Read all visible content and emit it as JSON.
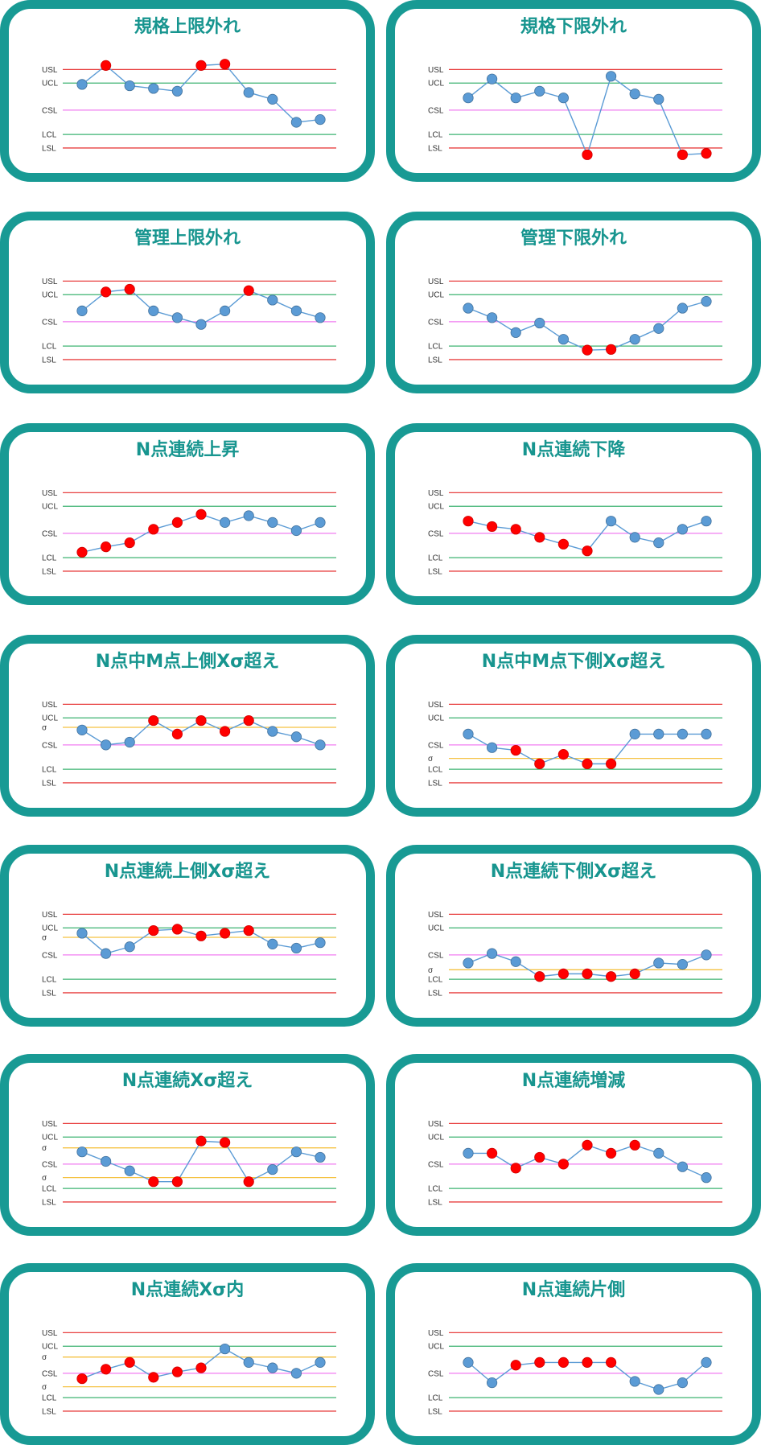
{
  "colors": {
    "frame": "#189a94",
    "title": "#17958f",
    "spec_line": "#e84040",
    "control_line": "#3cb371",
    "center_line": "#f07cf0",
    "sigma_line": "#f5c242",
    "point_normal": "#5b9bd5",
    "point_alarm": "#ff0000",
    "series_line": "#5b9bd5"
  },
  "chart_data": [
    {
      "title": "規格上限外れ",
      "type": "line",
      "lines": [
        {
          "label": "USL",
          "y": 5,
          "kind": "spec"
        },
        {
          "label": "UCL",
          "y": 4,
          "kind": "control"
        },
        {
          "label": "CSL",
          "y": 2,
          "kind": "center"
        },
        {
          "label": "LCL",
          "y": 0.2,
          "kind": "control"
        },
        {
          "label": "LSL",
          "y": -0.8,
          "kind": "spec"
        }
      ],
      "values": [
        3.9,
        5.3,
        3.8,
        3.6,
        3.4,
        5.3,
        5.4,
        3.3,
        2.8,
        1.1,
        1.3
      ],
      "alarm": [
        false,
        true,
        false,
        false,
        false,
        true,
        true,
        false,
        false,
        false,
        false
      ]
    },
    {
      "title": "規格下限外れ",
      "type": "line",
      "lines": [
        {
          "label": "USL",
          "y": 5,
          "kind": "spec"
        },
        {
          "label": "UCL",
          "y": 4,
          "kind": "control"
        },
        {
          "label": "CSL",
          "y": 2,
          "kind": "center"
        },
        {
          "label": "LCL",
          "y": 0.2,
          "kind": "control"
        },
        {
          "label": "LSL",
          "y": -0.8,
          "kind": "spec"
        }
      ],
      "values": [
        2.9,
        4.3,
        2.9,
        3.4,
        2.9,
        -1.3,
        4.5,
        3.2,
        2.8,
        -1.3,
        -1.2
      ],
      "alarm": [
        false,
        false,
        false,
        false,
        false,
        true,
        false,
        false,
        false,
        true,
        true
      ]
    },
    {
      "title": "管理上限外れ",
      "type": "line",
      "lines": [
        {
          "label": "USL",
          "y": 5,
          "kind": "spec"
        },
        {
          "label": "UCL",
          "y": 4,
          "kind": "control"
        },
        {
          "label": "CSL",
          "y": 2,
          "kind": "center"
        },
        {
          "label": "LCL",
          "y": 0.2,
          "kind": "control"
        },
        {
          "label": "LSL",
          "y": -0.8,
          "kind": "spec"
        }
      ],
      "values": [
        2.8,
        4.2,
        4.4,
        2.8,
        2.3,
        1.8,
        2.8,
        4.3,
        3.6,
        2.8,
        2.3
      ],
      "alarm": [
        false,
        true,
        true,
        false,
        false,
        false,
        false,
        true,
        false,
        false,
        false
      ]
    },
    {
      "title": "管理下限外れ",
      "type": "line",
      "lines": [
        {
          "label": "USL",
          "y": 5,
          "kind": "spec"
        },
        {
          "label": "UCL",
          "y": 4,
          "kind": "control"
        },
        {
          "label": "CSL",
          "y": 2,
          "kind": "center"
        },
        {
          "label": "LCL",
          "y": 0.2,
          "kind": "control"
        },
        {
          "label": "LSL",
          "y": -0.8,
          "kind": "spec"
        }
      ],
      "values": [
        3.0,
        2.3,
        1.2,
        1.9,
        0.7,
        -0.1,
        -0.05,
        0.7,
        1.5,
        3.0,
        3.5
      ],
      "alarm": [
        false,
        false,
        false,
        false,
        false,
        true,
        true,
        false,
        false,
        false,
        false
      ]
    },
    {
      "title": "N点連続上昇",
      "type": "line",
      "lines": [
        {
          "label": "USL",
          "y": 5,
          "kind": "spec"
        },
        {
          "label": "UCL",
          "y": 4,
          "kind": "control"
        },
        {
          "label": "CSL",
          "y": 2,
          "kind": "center"
        },
        {
          "label": "LCL",
          "y": 0.2,
          "kind": "control"
        },
        {
          "label": "LSL",
          "y": -0.8,
          "kind": "spec"
        }
      ],
      "values": [
        0.6,
        1.0,
        1.3,
        2.3,
        2.8,
        3.4,
        2.8,
        3.3,
        2.8,
        2.2,
        2.8
      ],
      "alarm": [
        true,
        true,
        true,
        true,
        true,
        true,
        false,
        false,
        false,
        false,
        false
      ]
    },
    {
      "title": "N点連続下降",
      "type": "line",
      "lines": [
        {
          "label": "USL",
          "y": 5,
          "kind": "spec"
        },
        {
          "label": "UCL",
          "y": 4,
          "kind": "control"
        },
        {
          "label": "CSL",
          "y": 2,
          "kind": "center"
        },
        {
          "label": "LCL",
          "y": 0.2,
          "kind": "control"
        },
        {
          "label": "LSL",
          "y": -0.8,
          "kind": "spec"
        }
      ],
      "values": [
        2.9,
        2.5,
        2.3,
        1.7,
        1.2,
        0.7,
        2.9,
        1.7,
        1.3,
        2.3,
        2.9
      ],
      "alarm": [
        true,
        true,
        true,
        true,
        true,
        true,
        false,
        false,
        false,
        false,
        false
      ]
    },
    {
      "title": "N点中M点上側Xσ超え",
      "type": "line",
      "lines": [
        {
          "label": "USL",
          "y": 5,
          "kind": "spec"
        },
        {
          "label": "UCL",
          "y": 4,
          "kind": "control"
        },
        {
          "label": "σ",
          "y": 3.3,
          "kind": "sigma"
        },
        {
          "label": "CSL",
          "y": 2,
          "kind": "center"
        },
        {
          "label": "LCL",
          "y": 0.2,
          "kind": "control"
        },
        {
          "label": "LSL",
          "y": -0.8,
          "kind": "spec"
        }
      ],
      "values": [
        3.1,
        2.0,
        2.2,
        3.8,
        2.8,
        3.8,
        3.0,
        3.8,
        3.0,
        2.6,
        2.0
      ],
      "alarm": [
        false,
        false,
        false,
        true,
        true,
        true,
        true,
        true,
        false,
        false,
        false
      ]
    },
    {
      "title": "N点中M点下側Xσ超え",
      "type": "line",
      "lines": [
        {
          "label": "USL",
          "y": 5,
          "kind": "spec"
        },
        {
          "label": "UCL",
          "y": 4,
          "kind": "control"
        },
        {
          "label": "CSL",
          "y": 2,
          "kind": "center"
        },
        {
          "label": "σ",
          "y": 1.0,
          "kind": "sigma"
        },
        {
          "label": "LCL",
          "y": 0.2,
          "kind": "control"
        },
        {
          "label": "LSL",
          "y": -0.8,
          "kind": "spec"
        }
      ],
      "values": [
        2.8,
        1.8,
        1.6,
        0.6,
        1.3,
        0.6,
        0.6,
        2.8,
        2.8,
        2.8,
        2.8
      ],
      "alarm": [
        false,
        false,
        true,
        true,
        true,
        true,
        true,
        false,
        false,
        false,
        false
      ]
    },
    {
      "title": "N点連続上側Xσ超え",
      "type": "line",
      "lines": [
        {
          "label": "USL",
          "y": 5,
          "kind": "spec"
        },
        {
          "label": "UCL",
          "y": 4,
          "kind": "control"
        },
        {
          "label": "σ",
          "y": 3.3,
          "kind": "sigma"
        },
        {
          "label": "CSL",
          "y": 2,
          "kind": "center"
        },
        {
          "label": "LCL",
          "y": 0.2,
          "kind": "control"
        },
        {
          "label": "LSL",
          "y": -0.8,
          "kind": "spec"
        }
      ],
      "values": [
        3.6,
        2.1,
        2.6,
        3.8,
        3.9,
        3.4,
        3.6,
        3.8,
        2.8,
        2.5,
        2.9
      ],
      "alarm": [
        false,
        false,
        false,
        true,
        true,
        true,
        true,
        true,
        false,
        false,
        false
      ]
    },
    {
      "title": "N点連続下側Xσ超え",
      "type": "line",
      "lines": [
        {
          "label": "USL",
          "y": 5,
          "kind": "spec"
        },
        {
          "label": "UCL",
          "y": 4,
          "kind": "control"
        },
        {
          "label": "CSL",
          "y": 2,
          "kind": "center"
        },
        {
          "label": "σ",
          "y": 0.9,
          "kind": "sigma"
        },
        {
          "label": "LCL",
          "y": 0.2,
          "kind": "control"
        },
        {
          "label": "LSL",
          "y": -0.8,
          "kind": "spec"
        }
      ],
      "values": [
        1.4,
        2.1,
        1.5,
        0.4,
        0.6,
        0.6,
        0.4,
        0.6,
        1.4,
        1.3,
        2.0
      ],
      "alarm": [
        false,
        false,
        false,
        true,
        true,
        true,
        true,
        true,
        false,
        false,
        false
      ]
    },
    {
      "title": "N点連続Xσ超え",
      "type": "line",
      "lines": [
        {
          "label": "USL",
          "y": 5,
          "kind": "spec"
        },
        {
          "label": "UCL",
          "y": 4,
          "kind": "control"
        },
        {
          "label": "σ",
          "y": 3.2,
          "kind": "sigma"
        },
        {
          "label": "CSL",
          "y": 2,
          "kind": "center"
        },
        {
          "label": "σ",
          "y": 1.0,
          "kind": "sigma"
        },
        {
          "label": "LCL",
          "y": 0.2,
          "kind": "control"
        },
        {
          "label": "LSL",
          "y": -0.8,
          "kind": "spec"
        }
      ],
      "values": [
        2.9,
        2.2,
        1.5,
        0.7,
        0.7,
        3.7,
        3.6,
        0.7,
        1.6,
        2.9,
        2.5
      ],
      "alarm": [
        false,
        false,
        false,
        true,
        true,
        true,
        true,
        true,
        false,
        false,
        false
      ]
    },
    {
      "title": "N点連続増減",
      "type": "line",
      "lines": [
        {
          "label": "USL",
          "y": 5,
          "kind": "spec"
        },
        {
          "label": "UCL",
          "y": 4,
          "kind": "control"
        },
        {
          "label": "CSL",
          "y": 2,
          "kind": "center"
        },
        {
          "label": "LCL",
          "y": 0.2,
          "kind": "control"
        },
        {
          "label": "LSL",
          "y": -0.8,
          "kind": "spec"
        }
      ],
      "values": [
        2.8,
        2.8,
        1.7,
        2.5,
        2.0,
        3.4,
        2.8,
        3.4,
        2.8,
        1.8,
        1.0
      ],
      "alarm": [
        false,
        true,
        true,
        true,
        true,
        true,
        true,
        true,
        false,
        false,
        false
      ]
    },
    {
      "title": "N点連続Xσ内",
      "type": "line",
      "lines": [
        {
          "label": "USL",
          "y": 5,
          "kind": "spec"
        },
        {
          "label": "UCL",
          "y": 4,
          "kind": "control"
        },
        {
          "label": "σ",
          "y": 3.2,
          "kind": "sigma"
        },
        {
          "label": "CSL",
          "y": 2,
          "kind": "center"
        },
        {
          "label": "σ",
          "y": 1.0,
          "kind": "sigma"
        },
        {
          "label": "LCL",
          "y": 0.2,
          "kind": "control"
        },
        {
          "label": "LSL",
          "y": -0.8,
          "kind": "spec"
        }
      ],
      "values": [
        1.6,
        2.3,
        2.8,
        1.7,
        2.1,
        2.4,
        3.8,
        2.8,
        2.4,
        2.0,
        2.8
      ],
      "alarm": [
        true,
        true,
        true,
        true,
        true,
        true,
        false,
        false,
        false,
        false,
        false
      ]
    },
    {
      "title": "N点連続片側",
      "type": "line",
      "lines": [
        {
          "label": "USL",
          "y": 5,
          "kind": "spec"
        },
        {
          "label": "UCL",
          "y": 4,
          "kind": "control"
        },
        {
          "label": "CSL",
          "y": 2,
          "kind": "center"
        },
        {
          "label": "LCL",
          "y": 0.2,
          "kind": "control"
        },
        {
          "label": "LSL",
          "y": -0.8,
          "kind": "spec"
        }
      ],
      "values": [
        2.8,
        1.3,
        2.6,
        2.8,
        2.8,
        2.8,
        2.8,
        1.4,
        0.8,
        1.3,
        2.8
      ],
      "alarm": [
        false,
        false,
        true,
        true,
        true,
        true,
        true,
        false,
        false,
        false,
        false
      ]
    }
  ]
}
